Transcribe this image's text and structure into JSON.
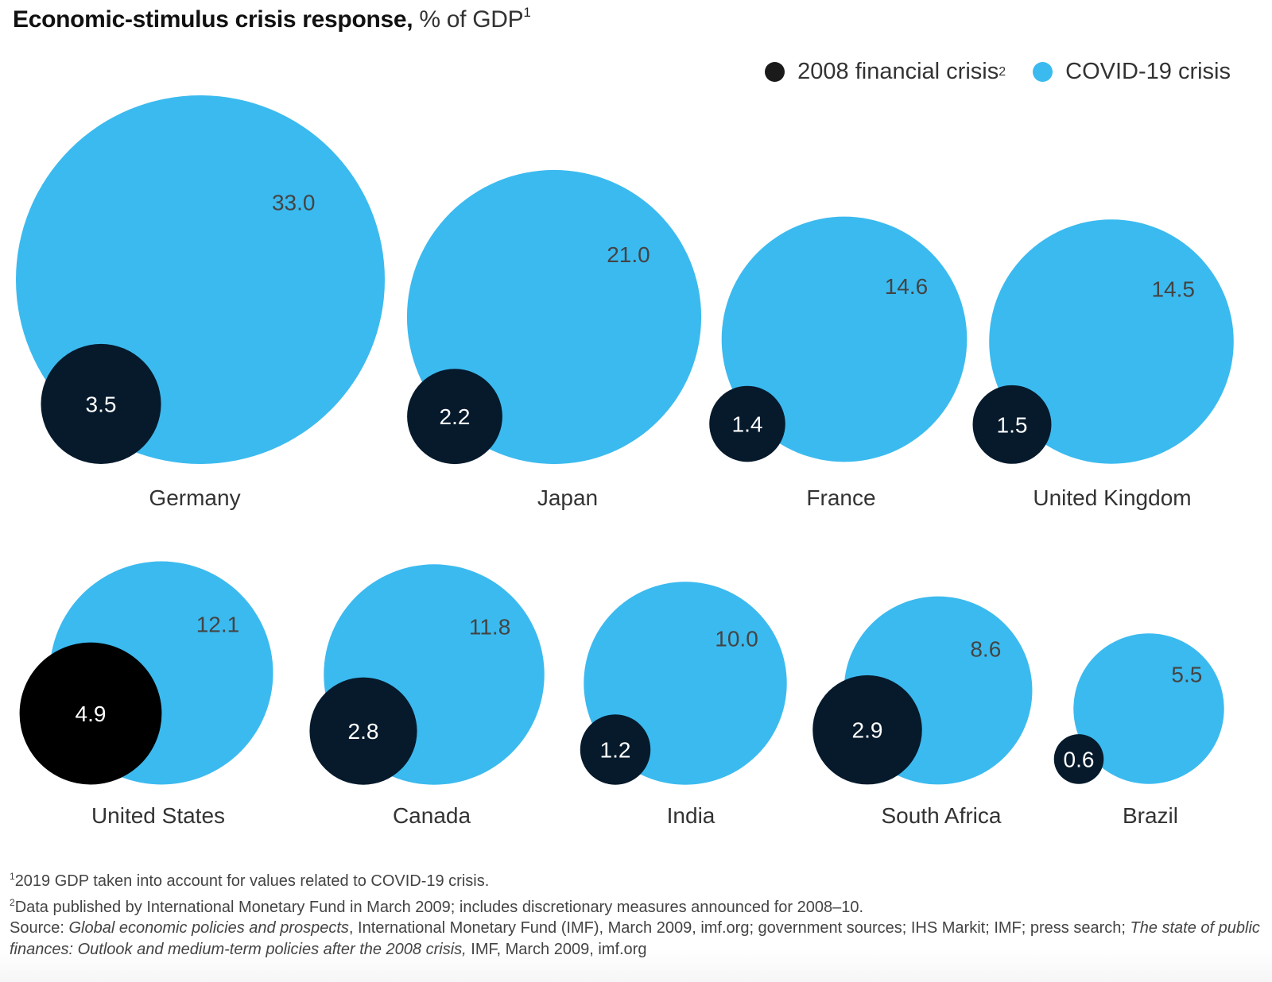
{
  "chart_data": {
    "type": "bubble",
    "title": "Economic-stimulus crisis response,",
    "title_unit": "% of GDP",
    "title_footnote": "1",
    "legend": [
      {
        "name": "2008 financial crisis",
        "footnote": "2",
        "color": "#061a2c"
      },
      {
        "name": "COVID-19 crisis",
        "footnote": "",
        "color": "#3bbaef"
      }
    ],
    "legend_position": "top-right",
    "rows": [
      [
        "Germany",
        "Japan",
        "France",
        "United Kingdom"
      ],
      [
        "United States",
        "Canada",
        "India",
        "South Africa",
        "Brazil"
      ]
    ],
    "categories": [
      "Germany",
      "Japan",
      "France",
      "United Kingdom",
      "United States",
      "Canada",
      "India",
      "South Africa",
      "Brazil"
    ],
    "series": [
      {
        "name": "2008 financial crisis",
        "values": [
          3.5,
          2.2,
          1.4,
          1.5,
          4.9,
          2.8,
          1.2,
          2.9,
          0.6
        ],
        "labels": [
          "3.5",
          "2.2",
          "1.4",
          "1.5",
          "4.9",
          "2.8",
          "1.2",
          "2.9",
          "0.6"
        ]
      },
      {
        "name": "COVID-19 crisis",
        "values": [
          33.0,
          21.0,
          14.6,
          14.5,
          12.1,
          11.8,
          10.0,
          8.6,
          5.5
        ],
        "labels": [
          "33.0",
          "21.0",
          "14.6",
          "14.5",
          "12.1",
          "11.8",
          "10.0",
          "8.6",
          "5.5"
        ]
      }
    ],
    "highlight": {
      "country": "United States",
      "series": "2008 financial crisis",
      "color": "#000000"
    }
  },
  "footnotes": {
    "note1_marker": "1",
    "note1": "2019 GDP taken into account for values related to COVID-19 crisis.",
    "note2_marker": "2",
    "note2": "Data published by International Monetary Fund in March 2009; includes discretionary measures announced for 2008–10.",
    "source_prefix": "Source: ",
    "source_italic1": "Global economic policies and prospects",
    "source_mid": ", International Monetary Fund (IMF), March 2009, imf.org; government sources; IHS Markit; IMF; press search; ",
    "source_italic2": "The state of public finances: Outlook and medium-term policies after the 2008 crisis,",
    "source_end": " IMF, March 2009, imf.org"
  }
}
